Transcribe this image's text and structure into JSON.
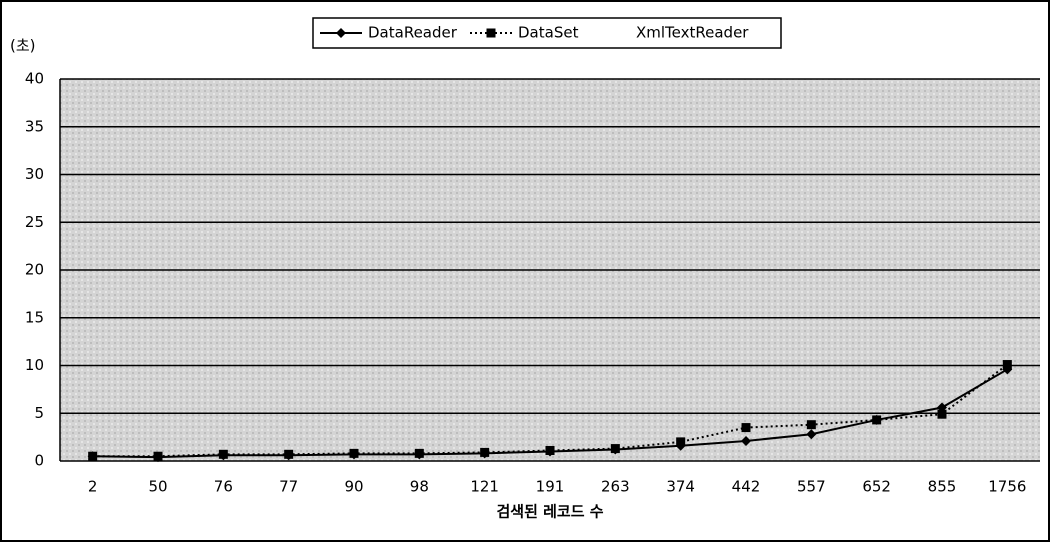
{
  "chart_data": {
    "type": "line",
    "y_unit_label": "(초)",
    "x_label": "검색된 레코드 수",
    "categories": [
      "2",
      "50",
      "76",
      "77",
      "90",
      "98",
      "121",
      "191",
      "263",
      "374",
      "442",
      "557",
      "652",
      "855",
      "1756"
    ],
    "series": [
      {
        "name": "DataReader",
        "color": "#000000",
        "marker": "diamond",
        "dash": "solid",
        "values": [
          0.5,
          0.4,
          0.6,
          0.6,
          0.7,
          0.7,
          0.8,
          1.0,
          1.2,
          1.6,
          2.1,
          2.8,
          4.3,
          5.6,
          9.6
        ]
      },
      {
        "name": "DataSet",
        "color": "#000000",
        "marker": "square",
        "dash": "dotted",
        "values": [
          0.5,
          0.5,
          0.7,
          0.7,
          0.8,
          0.8,
          0.9,
          1.1,
          1.3,
          2.0,
          3.5,
          3.8,
          4.3,
          4.9,
          10.1
        ]
      },
      {
        "name": "XmlTextReader",
        "color": "#ffffff",
        "marker": "none",
        "dash": "solid",
        "values": [
          null,
          null,
          null,
          null,
          null,
          null,
          null,
          null,
          null,
          null,
          null,
          null,
          null,
          null,
          null
        ]
      }
    ],
    "ylim": [
      0,
      40
    ],
    "yticks": [
      0,
      5,
      10,
      15,
      20,
      25,
      30,
      35,
      40
    ],
    "grid": true
  }
}
